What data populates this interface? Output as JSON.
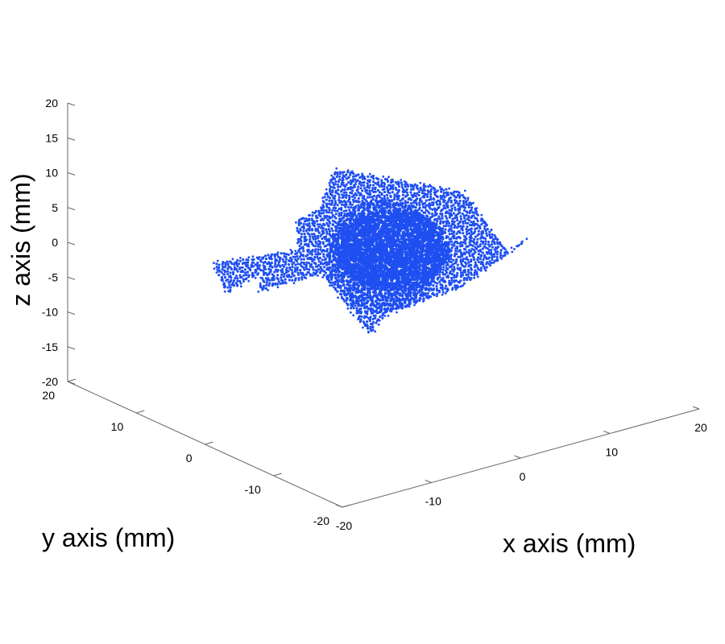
{
  "chart_data": {
    "type": "scatter",
    "title": "",
    "xlabel": "x axis (mm)",
    "ylabel": "y axis (mm)",
    "zlabel": "z axis (mm)",
    "xlim": [
      -20,
      20
    ],
    "ylim": [
      -20,
      20
    ],
    "zlim": [
      -20,
      20
    ],
    "grid": false,
    "marker_color": "#1f4ff0",
    "x_ticks": [
      "-20",
      "-10",
      "0",
      "10",
      "20"
    ],
    "y_ticks": [
      "-20",
      "-10",
      "0",
      "10",
      "20"
    ],
    "z_ticks": [
      "-20",
      "-15",
      "-10",
      "-5",
      "0",
      "5",
      "10",
      "15",
      "20"
    ],
    "series": [
      {
        "shape": "five-pointed star point cloud",
        "points": [
          {
            "x": 0,
            "y": 0,
            "z": 0
          },
          {
            "x": 4.3,
            "y": 12.7,
            "z": 5.2
          },
          {
            "x": 10.9,
            "y": 2.5,
            "z": 4.2
          },
          {
            "x": 10.1,
            "y": -4.9,
            "z": -0.8
          },
          {
            "x": 14.0,
            "y": -2.7,
            "z": -1.5
          },
          {
            "x": 4.1,
            "y": -5.9,
            "z": -3.2
          },
          {
            "x": -3.2,
            "y": -4.6,
            "z": -5.1
          },
          {
            "x": -5.3,
            "y": -5.0,
            "z": -7.0
          },
          {
            "x": -3.0,
            "y": 5.1,
            "z": -3.7
          },
          {
            "x": -8.2,
            "y": 7.6,
            "z": -5.6
          },
          {
            "x": -5.9,
            "y": 9.9,
            "z": -4.6
          },
          {
            "x": -9.7,
            "y": 10.3,
            "z": -6.5
          },
          {
            "x": -8.0,
            "y": 14.3,
            "z": -4.7
          },
          {
            "x": -2.4,
            "y": 9.1,
            "z": -2.4
          },
          {
            "x": -0.4,
            "y": 12.4,
            "z": -0.6
          },
          {
            "x": -0.4,
            "y": 8.8,
            "z": 2.9
          }
        ]
      }
    ]
  }
}
